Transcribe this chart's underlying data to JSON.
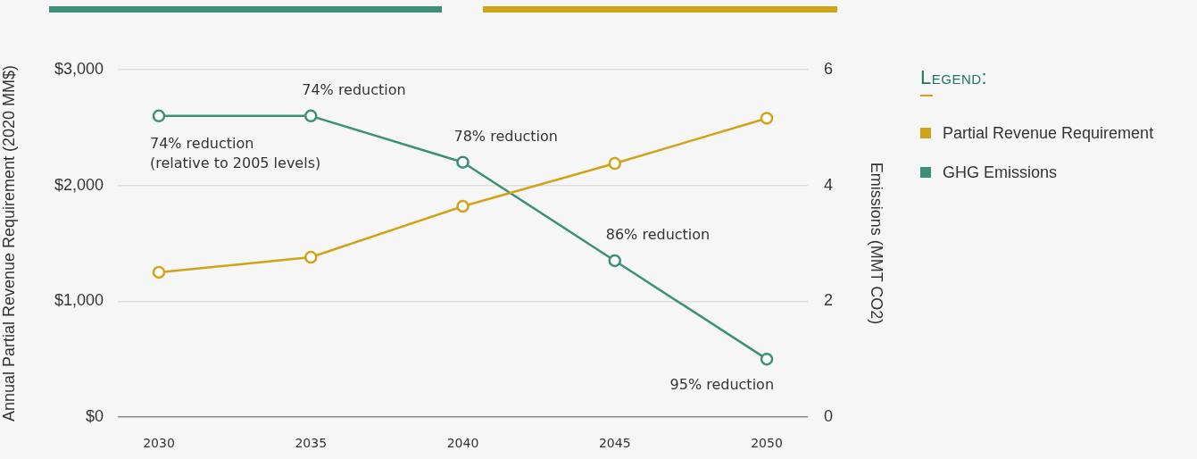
{
  "chart_data": {
    "type": "line",
    "x": [
      2030,
      2035,
      2040,
      2045,
      2050
    ],
    "xlim": [
      2028.65,
      2051.35
    ],
    "xticks": [
      2030,
      2035,
      2040,
      2045,
      2050
    ],
    "ylabel": "Annual Partial Revenue Requirement (2020 MM$)",
    "y2label": "Emissions (MMT CO2)",
    "legend_title": "Legend:",
    "ylim": [
      0,
      3000
    ],
    "yticks": [
      {
        "value": 0,
        "label": "$0"
      },
      {
        "value": 1000,
        "label": "$1,000"
      },
      {
        "value": 2000,
        "label": "$2,000"
      },
      {
        "value": 3000,
        "label": "$3,000"
      }
    ],
    "y2lim": [
      0,
      6
    ],
    "y2ticks": [
      0,
      2,
      4,
      6
    ],
    "series": [
      {
        "name": "Partial Revenue Requirement",
        "color": "#d1a318",
        "values": [
          1250,
          1380,
          1820,
          2190,
          2580
        ]
      },
      {
        "name": "GHG Emissions",
        "color": "#3a9078",
        "values": [
          5.2,
          5.2,
          4.4,
          2.7,
          1.0
        ],
        "axis": "y2"
      }
    ],
    "annotations": [
      "74% reduction\n(relative to 2005 levels)",
      "74% reduction",
      "78% reduction",
      "86% reduction",
      "95% reduction"
    ],
    "grid": "y",
    "legend": "right",
    "marker": "circle",
    "line_style": "solid"
  }
}
